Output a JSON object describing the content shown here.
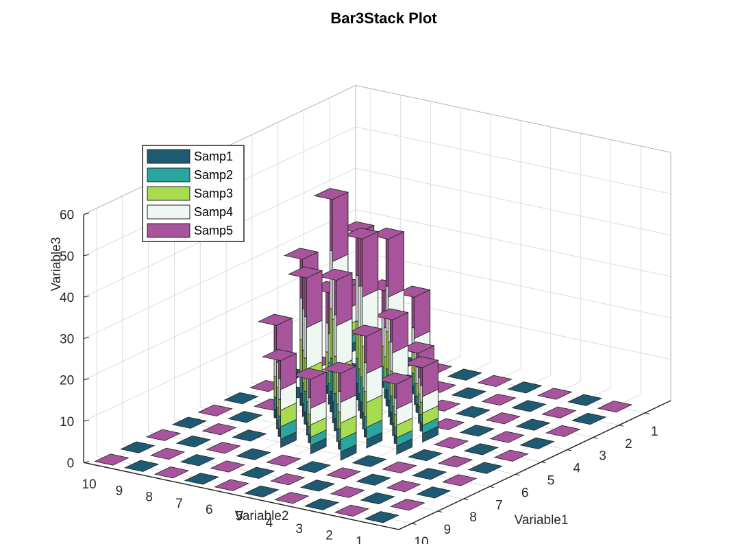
{
  "chart_data": {
    "type": "bar3-stacked",
    "title": "Bar3Stack Plot",
    "xlabel": "Variable1",
    "ylabel": "Variable2",
    "zlabel": "Variable3",
    "x_ticks": [
      "1",
      "2",
      "3",
      "4",
      "5",
      "6",
      "7",
      "8",
      "9",
      "10"
    ],
    "y_ticks": [
      "1",
      "2",
      "3",
      "4",
      "5",
      "6",
      "7",
      "8",
      "9",
      "10"
    ],
    "z_ticks": [
      "0",
      "10",
      "20",
      "30",
      "40",
      "50",
      "60"
    ],
    "zlim": [
      0,
      60
    ],
    "grid": true,
    "legend_position": "top-left",
    "series": [
      {
        "name": "Samp1",
        "color": "#1f5a73"
      },
      {
        "name": "Samp2",
        "color": "#2aa5a0"
      },
      {
        "name": "Samp3",
        "color": "#a6dc4e"
      },
      {
        "name": "Samp4",
        "color": "#eef7f2"
      },
      {
        "name": "Samp5",
        "color": "#a7549c"
      }
    ],
    "grid_values_note": "values[y-1][x-1] = [Samp1..Samp5]",
    "values": [
      [
        [
          0,
          0,
          0,
          0,
          0
        ],
        [
          0,
          0,
          0,
          0,
          0
        ],
        [
          0,
          0,
          0,
          0,
          0
        ],
        [
          0,
          0,
          0,
          0,
          0
        ],
        [
          0,
          0,
          0,
          0,
          0
        ],
        [
          0,
          0,
          0,
          0,
          0
        ],
        [
          0,
          0,
          0,
          0,
          0
        ],
        [
          0,
          0,
          0,
          0,
          0
        ],
        [
          0,
          0,
          0,
          0,
          0
        ],
        [
          0,
          0,
          0,
          0,
          0
        ]
      ],
      [
        [
          0,
          0,
          0,
          0,
          0
        ],
        [
          0,
          0,
          0,
          0,
          0
        ],
        [
          0,
          0,
          0,
          0,
          0
        ],
        [
          0,
          0,
          0,
          0,
          0
        ],
        [
          0,
          0,
          0,
          0,
          0
        ],
        [
          0,
          0,
          0,
          0,
          0
        ],
        [
          0,
          0,
          0,
          0,
          0
        ],
        [
          0,
          0,
          0,
          0,
          0
        ],
        [
          0,
          0,
          0,
          0,
          0
        ],
        [
          0,
          0,
          0,
          0,
          0
        ]
      ],
      [
        [
          0,
          0,
          0,
          0,
          0
        ],
        [
          0,
          0,
          0,
          0,
          0
        ],
        [
          0,
          0,
          0,
          0,
          0
        ],
        [
          0,
          0,
          0,
          0,
          0
        ],
        [
          0,
          0,
          0,
          0,
          0
        ],
        [
          0,
          0,
          0,
          0,
          0
        ],
        [
          0,
          0,
          0,
          0,
          0
        ],
        [
          0,
          0,
          0,
          0,
          0
        ],
        [
          0,
          0,
          0,
          0,
          0
        ],
        [
          0,
          0,
          0,
          0,
          0
        ]
      ],
      [
        [
          0,
          0,
          0,
          0,
          0
        ],
        [
          0,
          0,
          0,
          0,
          0
        ],
        [
          0,
          0,
          0,
          0,
          0
        ],
        [
          0,
          0,
          0,
          0,
          0
        ],
        [
          2,
          2,
          3,
          4,
          7
        ],
        [
          2,
          2,
          3,
          4,
          6
        ],
        [
          0,
          0,
          0,
          0,
          0
        ],
        [
          0,
          0,
          0,
          0,
          0
        ],
        [
          0,
          0,
          0,
          0,
          0
        ],
        [
          0,
          0,
          0,
          0,
          0
        ]
      ],
      [
        [
          0,
          0,
          0,
          0,
          0
        ],
        [
          0,
          0,
          0,
          0,
          0
        ],
        [
          0,
          0,
          0,
          0,
          0
        ],
        [
          2,
          2,
          3,
          4,
          6
        ],
        [
          3,
          4,
          6,
          7,
          8
        ],
        [
          2,
          3,
          6,
          7,
          9
        ],
        [
          2,
          3,
          4,
          5,
          7
        ],
        [
          0,
          0,
          0,
          0,
          0
        ],
        [
          0,
          0,
          0,
          0,
          0
        ],
        [
          0,
          0,
          0,
          0,
          0
        ]
      ],
      [
        [
          0,
          0,
          0,
          0,
          0
        ],
        [
          0,
          0,
          0,
          0,
          0
        ],
        [
          2,
          3,
          5,
          6,
          10
        ],
        [
          4,
          5,
          9,
          11,
          14
        ],
        [
          4,
          6,
          10,
          12,
          14
        ],
        [
          3,
          6,
          9,
          10,
          11
        ],
        [
          2,
          2,
          3,
          4,
          7
        ],
        [
          0,
          0,
          0,
          0,
          0
        ],
        [
          0,
          0,
          0,
          0,
          0
        ],
        [
          0,
          0,
          0,
          0,
          0
        ]
      ],
      [
        [
          0,
          0,
          0,
          0,
          0
        ],
        [
          0,
          0,
          0,
          0,
          0
        ],
        [
          2,
          3,
          5,
          7,
          9
        ],
        [
          4,
          6,
          9,
          11,
          13
        ],
        [
          5,
          8,
          12,
          14,
          15
        ],
        [
          3,
          5,
          8,
          10,
          12
        ],
        [
          2,
          3,
          4,
          5,
          7
        ],
        [
          0,
          0,
          0,
          0,
          0
        ],
        [
          0,
          0,
          0,
          0,
          0
        ],
        [
          0,
          0,
          0,
          0,
          0
        ]
      ],
      [
        [
          0,
          0,
          0,
          0,
          0
        ],
        [
          0,
          0,
          0,
          0,
          0
        ],
        [
          0,
          0,
          0,
          0,
          0
        ],
        [
          2,
          3,
          5,
          7,
          10
        ],
        [
          3,
          5,
          8,
          10,
          12
        ],
        [
          2,
          3,
          5,
          6,
          9
        ],
        [
          0,
          0,
          0,
          0,
          0
        ],
        [
          0,
          0,
          0,
          0,
          0
        ],
        [
          0,
          0,
          0,
          0,
          0
        ],
        [
          0,
          0,
          0,
          0,
          0
        ]
      ],
      [
        [
          0,
          0,
          0,
          0,
          0
        ],
        [
          0,
          0,
          0,
          0,
          0
        ],
        [
          0,
          0,
          0,
          0,
          0
        ],
        [
          0,
          0,
          0,
          0,
          0
        ],
        [
          0,
          0,
          0,
          0,
          0
        ],
        [
          0,
          0,
          0,
          0,
          0
        ],
        [
          0,
          0,
          0,
          0,
          0
        ],
        [
          0,
          0,
          0,
          0,
          0
        ],
        [
          0,
          0,
          0,
          0,
          0
        ],
        [
          0,
          0,
          0,
          0,
          0
        ]
      ],
      [
        [
          2,
          2,
          3,
          4,
          5
        ],
        [
          0,
          0,
          0,
          0,
          0
        ],
        [
          0,
          0,
          0,
          0,
          0
        ],
        [
          0,
          0,
          0,
          0,
          0
        ],
        [
          0,
          0,
          0,
          0,
          0
        ],
        [
          0,
          0,
          0,
          0,
          0
        ],
        [
          0,
          0,
          0,
          0,
          0
        ],
        [
          0,
          0,
          0,
          0,
          0
        ],
        [
          0,
          0,
          0,
          0,
          0
        ],
        [
          0,
          0,
          0,
          0,
          0
        ]
      ]
    ]
  }
}
